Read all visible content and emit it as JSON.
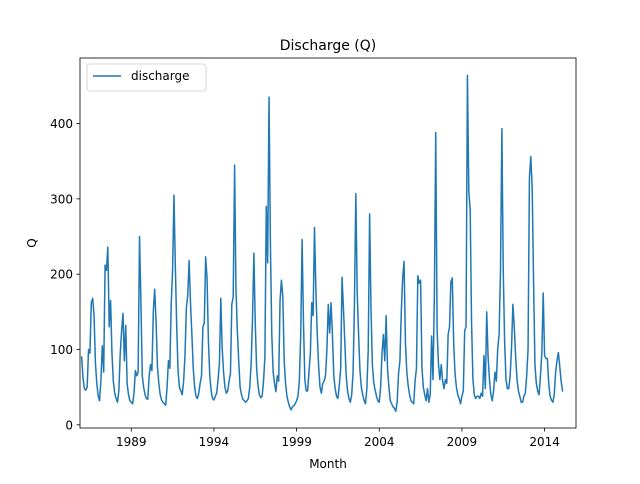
{
  "chart_data": {
    "type": "line",
    "title": "Discharge (Q)",
    "xlabel": "Month",
    "ylabel": "Q",
    "xlim": [
      1985.9,
      2015.9
    ],
    "ylim": [
      -4.2,
      487
    ],
    "x_ticks": [
      1989,
      1994,
      1999,
      2004,
      2009,
      2014
    ],
    "x_tick_labels": [
      "1989",
      "1994",
      "1999",
      "2004",
      "2009",
      "2014"
    ],
    "y_ticks": [
      0,
      100,
      200,
      300,
      400
    ],
    "y_tick_labels": [
      "0",
      "100",
      "200",
      "300",
      "400"
    ],
    "grid": false,
    "legend": {
      "position": "top-left",
      "entries": [
        "discharge"
      ]
    },
    "series": [
      {
        "name": "discharge",
        "color": "#1f77b4",
        "x_start": 1986.0,
        "x_step": 0.0833333,
        "values": [
          90,
          62,
          48,
          46,
          50,
          100,
          95,
          162,
          168,
          145,
          82,
          55,
          38,
          32,
          60,
          105,
          70,
          212,
          205,
          236,
          130,
          165,
          95,
          58,
          42,
          35,
          30,
          45,
          95,
          125,
          148,
          85,
          132,
          55,
          40,
          32,
          30,
          28,
          42,
          72,
          65,
          70,
          250,
          165,
          65,
          50,
          40,
          35,
          34,
          65,
          80,
          72,
          150,
          180,
          138,
          78,
          55,
          40,
          33,
          30,
          28,
          26,
          50,
          85,
          75,
          160,
          205,
          305,
          210,
          130,
          70,
          50,
          45,
          40,
          58,
          92,
          155,
          172,
          218,
          162,
          120,
          75,
          50,
          38,
          35,
          42,
          55,
          65,
          130,
          135,
          223,
          195,
          112,
          65,
          45,
          35,
          33,
          38,
          42,
          60,
          82,
          168,
          102,
          70,
          50,
          42,
          45,
          58,
          68,
          160,
          170,
          345,
          180,
          125,
          85,
          50,
          40,
          34,
          32,
          30,
          32,
          35,
          50,
          80,
          140,
          228,
          135,
          75,
          52,
          40,
          36,
          38,
          58,
          90,
          290,
          215,
          435,
          240,
          120,
          70,
          55,
          44,
          65,
          58,
          165,
          192,
          170,
          85,
          55,
          38,
          30,
          24,
          20,
          24,
          25,
          28,
          32,
          38,
          58,
          120,
          246,
          135,
          60,
          45,
          45,
          70,
          95,
          162,
          145,
          262,
          180,
          120,
          78,
          50,
          42,
          55,
          58,
          65,
          100,
          160,
          122,
          162,
          120,
          65,
          48,
          38,
          35,
          52,
          75,
          196,
          155,
          110,
          65,
          45,
          35,
          30,
          40,
          70,
          160,
          307,
          175,
          120,
          72,
          50,
          40,
          32,
          28,
          48,
          100,
          280,
          155,
          80,
          56,
          46,
          38,
          32,
          30,
          50,
          95,
          120,
          85,
          145,
          75,
          50,
          32,
          28,
          24,
          22,
          18,
          30,
          68,
          85,
          150,
          195,
          217,
          110,
          70,
          52,
          40,
          32,
          30,
          28,
          58,
          75,
          198,
          188,
          192,
          75,
          50,
          40,
          32,
          48,
          30,
          40,
          118,
          60,
          170,
          388,
          125,
          80,
          60,
          80,
          58,
          48,
          60,
          55,
          120,
          130,
          190,
          195,
          110,
          68,
          50,
          40,
          35,
          28,
          38,
          45,
          125,
          130,
          464,
          310,
          285,
          135,
          60,
          40,
          35,
          38,
          38,
          35,
          42,
          38,
          92,
          48,
          150,
          90,
          60,
          40,
          32,
          45,
          70,
          58,
          102,
          120,
          205,
          393,
          205,
          110,
          60,
          48,
          48,
          65,
          102,
          160,
          130,
          90,
          60,
          45,
          38,
          30,
          30,
          38,
          42,
          65,
          100,
          328,
          356,
          315,
          190,
          80,
          55,
          45,
          40,
          65,
          95,
          175,
          92,
          88,
          88,
          55,
          38,
          33,
          30,
          40,
          70,
          85,
          96,
          78,
          58,
          45
        ]
      }
    ]
  }
}
